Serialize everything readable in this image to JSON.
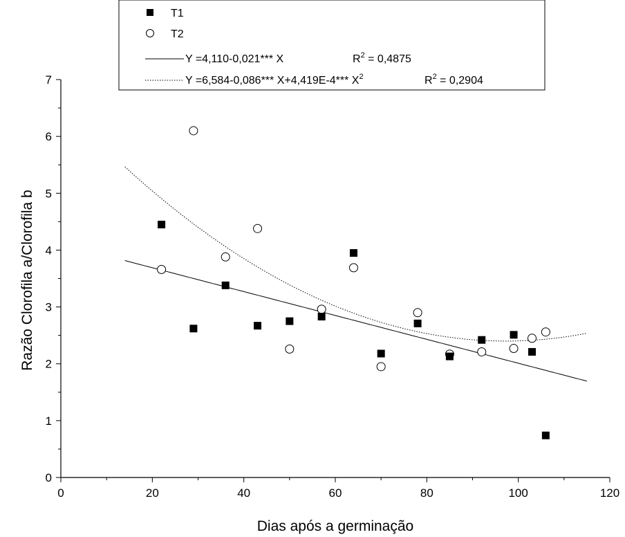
{
  "chart_data": {
    "type": "scatter",
    "xlabel": "Dias após a germinação",
    "ylabel": "Razão Clorofila a/Clorofila b",
    "xlim": [
      0,
      120
    ],
    "ylim": [
      0,
      7
    ],
    "x_ticks": [
      0,
      20,
      40,
      60,
      80,
      100,
      120
    ],
    "y_ticks": [
      0,
      1,
      2,
      3,
      4,
      5,
      6,
      7
    ],
    "grid": false,
    "legend_position": "top",
    "series": [
      {
        "name": "T1",
        "marker": "filled-square",
        "points": [
          [
            22,
            4.45
          ],
          [
            29,
            2.62
          ],
          [
            36,
            3.38
          ],
          [
            43,
            2.67
          ],
          [
            50,
            2.75
          ],
          [
            57,
            2.83
          ],
          [
            64,
            3.95
          ],
          [
            70,
            2.18
          ],
          [
            78,
            2.71
          ],
          [
            85,
            2.13
          ],
          [
            92,
            2.42
          ],
          [
            99,
            2.51
          ],
          [
            103,
            2.21
          ],
          [
            106,
            0.74
          ]
        ]
      },
      {
        "name": "T2",
        "marker": "open-circle",
        "points": [
          [
            22,
            3.66
          ],
          [
            29,
            6.1
          ],
          [
            36,
            3.88
          ],
          [
            43,
            4.38
          ],
          [
            50,
            2.26
          ],
          [
            57,
            2.96
          ],
          [
            64,
            3.69
          ],
          [
            70,
            1.95
          ],
          [
            78,
            2.9
          ],
          [
            85,
            2.17
          ],
          [
            92,
            2.21
          ],
          [
            99,
            2.27
          ],
          [
            103,
            2.45
          ],
          [
            106,
            2.56
          ]
        ]
      }
    ],
    "fits": [
      {
        "style": "solid",
        "equation": "Y =4,110-0,021*** X",
        "r2_label": "R",
        "r2_value": " = 0,4875",
        "coefficients": [
          4.11,
          -0.021,
          0
        ],
        "x_range": [
          14,
          115
        ]
      },
      {
        "style": "dotted",
        "equation": "Y =6,584-0,086*** X+4,419E-4*** X",
        "equation_sup": "2",
        "r2_label": "R",
        "r2_value": " = 0,2904",
        "coefficients": [
          6.584,
          -0.086,
          0.0004419
        ],
        "x_range": [
          14,
          115
        ]
      }
    ]
  }
}
